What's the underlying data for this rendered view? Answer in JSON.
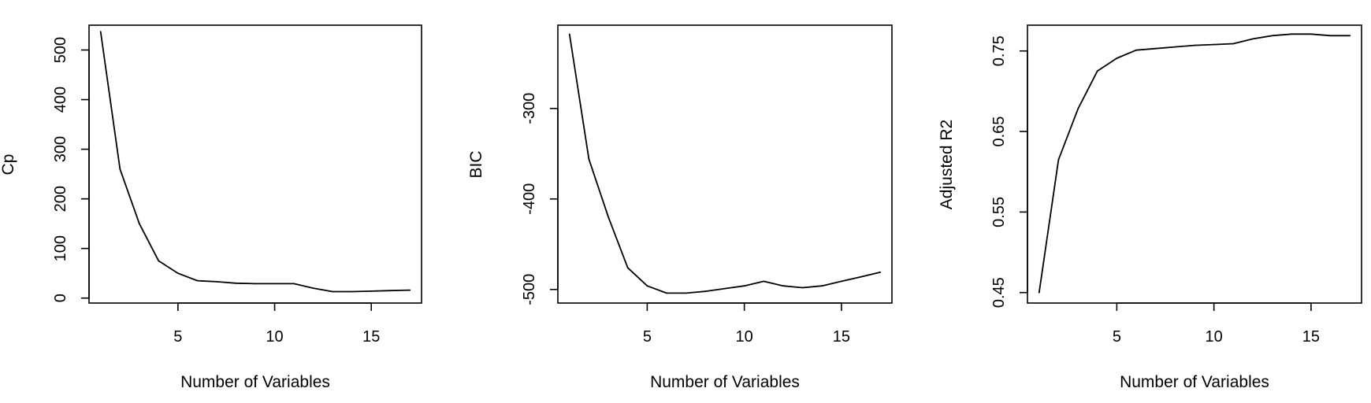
{
  "chart_data": [
    {
      "type": "line",
      "xlabel": "Number of Variables",
      "ylabel": "Cp",
      "xlim": [
        0.4,
        17.6
      ],
      "ylim": [
        -10,
        550
      ],
      "xticks": [
        5,
        10,
        15
      ],
      "xtick_labels": [
        "5",
        "10",
        "15"
      ],
      "yticks": [
        0,
        100,
        200,
        300,
        400,
        500
      ],
      "ytick_labels": [
        "0",
        "100",
        "200",
        "300",
        "400",
        "500"
      ],
      "x": [
        1,
        2,
        3,
        4,
        5,
        6,
        7,
        8,
        9,
        10,
        11,
        12,
        13,
        14,
        15,
        16,
        17
      ],
      "y": [
        537,
        260,
        150,
        75,
        50,
        35,
        33,
        30,
        29,
        29,
        29,
        20,
        13,
        13,
        14,
        15,
        16
      ],
      "grid": false
    },
    {
      "type": "line",
      "xlabel": "Number of Variables",
      "ylabel": "BIC",
      "xlim": [
        0.4,
        17.6
      ],
      "ylim": [
        -515,
        -208
      ],
      "xticks": [
        5,
        10,
        15
      ],
      "xtick_labels": [
        "5",
        "10",
        "15"
      ],
      "yticks": [
        -500,
        -400,
        -300
      ],
      "ytick_labels": [
        "-500",
        "-400",
        "-300"
      ],
      "x": [
        1,
        2,
        3,
        4,
        5,
        6,
        7,
        8,
        9,
        10,
        11,
        12,
        13,
        14,
        15,
        16,
        17
      ],
      "y": [
        -218,
        -356,
        -420,
        -476,
        -496,
        -504,
        -504,
        -502,
        -499,
        -496,
        -491,
        -496,
        -498,
        -496,
        -491,
        -486,
        -481
      ],
      "grid": false
    },
    {
      "type": "line",
      "xlabel": "Number of Variables",
      "ylabel": "Adjusted R2",
      "xlim": [
        0.4,
        17.6
      ],
      "ylim": [
        0.437,
        0.782
      ],
      "xticks": [
        5,
        10,
        15
      ],
      "xtick_labels": [
        "5",
        "10",
        "15"
      ],
      "yticks": [
        0.45,
        0.55,
        0.65,
        0.75
      ],
      "ytick_labels": [
        "0.45",
        "0.55",
        "0.65",
        "0.75"
      ],
      "x": [
        1,
        2,
        3,
        4,
        5,
        6,
        7,
        8,
        9,
        10,
        11,
        12,
        13,
        14,
        15,
        16,
        17
      ],
      "y": [
        0.45,
        0.615,
        0.678,
        0.725,
        0.741,
        0.751,
        0.753,
        0.755,
        0.757,
        0.758,
        0.759,
        0.765,
        0.769,
        0.771,
        0.771,
        0.769,
        0.769
      ],
      "grid": false
    }
  ]
}
